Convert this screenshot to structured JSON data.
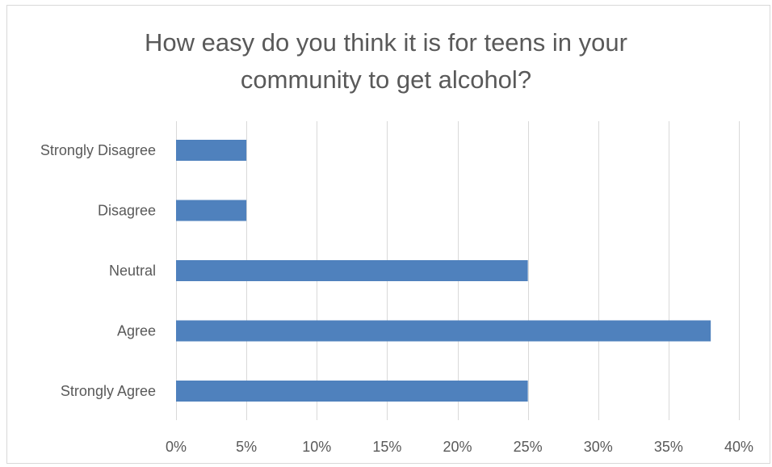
{
  "chart_data": {
    "type": "bar",
    "orientation": "horizontal",
    "title_lines": [
      "How easy do you think it is for teens in your",
      "community to get alcohol?"
    ],
    "categories": [
      "Strongly Disagree",
      "Disagree",
      "Neutral",
      "Agree",
      "Strongly Agree"
    ],
    "values": [
      5,
      5,
      25,
      38,
      25
    ],
    "xlim": [
      0,
      40
    ],
    "x_ticks": [
      "0%",
      "5%",
      "10%",
      "15%",
      "20%",
      "25%",
      "30%",
      "35%",
      "40%"
    ],
    "tick_step": 5,
    "grid": "vertical",
    "legend": "none",
    "bar_color": "#4f81bd",
    "grid_color": "#d9d9d9"
  }
}
